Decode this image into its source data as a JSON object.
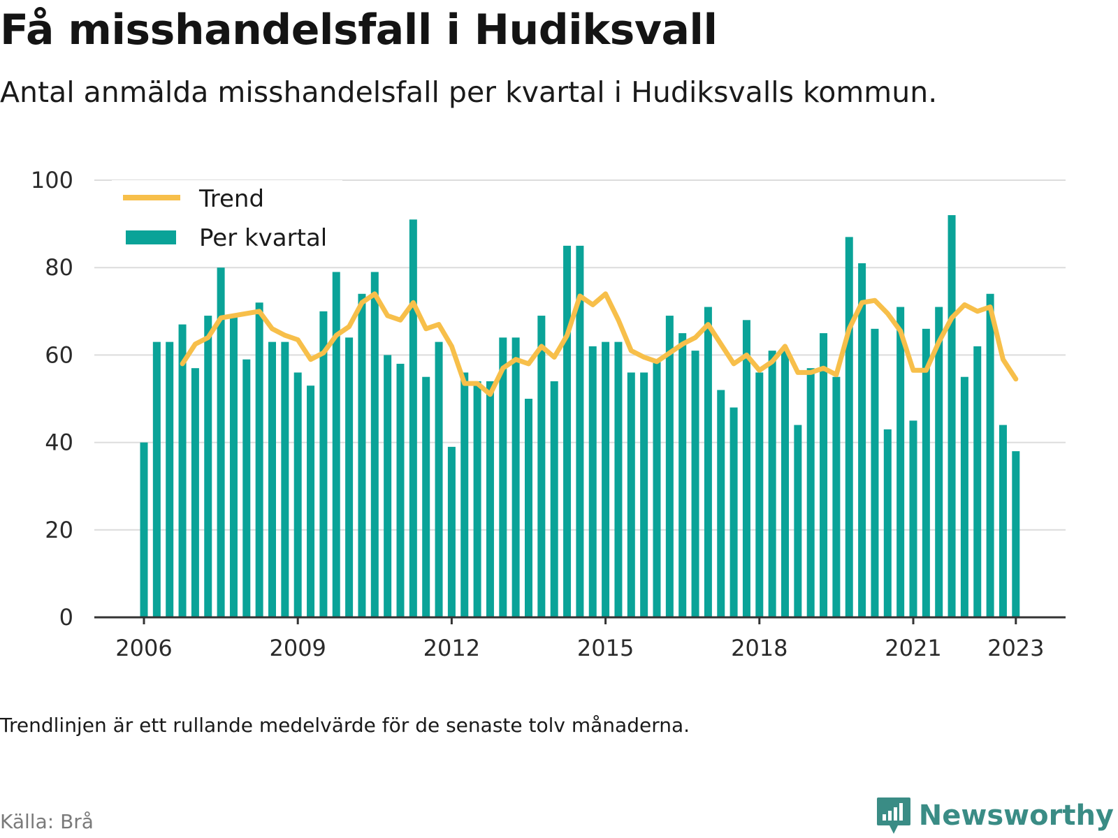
{
  "header": {
    "title": "Få misshandelsfall i Hudiksvall",
    "subtitle": "Antal anmälda misshandelsfall per kvartal i Hudiksvalls kommun."
  },
  "footer": {
    "note": "Trendlinjen är ett rullande medelvärde för de senaste tolv månaderna.",
    "source": "Källa: Brå",
    "brand": "Newsworthy"
  },
  "colors": {
    "bar": "#0aa398",
    "trend": "#f7bf4a",
    "grid": "#dcdcdc",
    "axis": "#333333",
    "brand": "#3a8c85"
  },
  "chart_data": {
    "type": "bar",
    "start_year": 2006,
    "xticks": [
      "2006",
      "2009",
      "2012",
      "2015",
      "2018",
      "2021",
      "2023"
    ],
    "ylim": [
      0,
      100
    ],
    "yticks": [
      0,
      20,
      40,
      60,
      80,
      100
    ],
    "grid": true,
    "legend_position": "top-left",
    "series": [
      {
        "name": "Per kvartal",
        "type": "bar",
        "values": [
          40,
          63,
          63,
          67,
          57,
          69,
          80,
          69,
          59,
          72,
          63,
          63,
          56,
          53,
          70,
          79,
          64,
          74,
          79,
          60,
          58,
          91,
          55,
          63,
          39,
          56,
          54,
          54,
          64,
          64,
          50,
          69,
          54,
          85,
          85,
          62,
          63,
          63,
          56,
          56,
          59,
          69,
          65,
          61,
          71,
          52,
          48,
          68,
          56,
          61,
          61,
          44,
          57,
          65,
          55,
          87,
          81,
          66,
          43,
          71,
          45,
          66,
          71,
          92,
          55,
          62,
          74,
          44,
          38
        ]
      },
      {
        "name": "Trend",
        "type": "line",
        "values": [
          null,
          null,
          null,
          58,
          62.5,
          64,
          68.5,
          69,
          69.5,
          70,
          66,
          64.5,
          63.5,
          59,
          60.5,
          64.5,
          66.5,
          72,
          74,
          69,
          68,
          72,
          66,
          67,
          62,
          53.5,
          53.5,
          51,
          57,
          59,
          58,
          62,
          59.5,
          64.5,
          73.5,
          71.5,
          74,
          68,
          61,
          59.5,
          58.5,
          60.5,
          62.5,
          64,
          67,
          62.5,
          58,
          60,
          56.5,
          58.5,
          62,
          56,
          56,
          57,
          55.5,
          66,
          72,
          72.5,
          69.5,
          65.5,
          56.5,
          56.5,
          63,
          68.5,
          71.5,
          70,
          71,
          59,
          54.5
        ]
      }
    ]
  }
}
